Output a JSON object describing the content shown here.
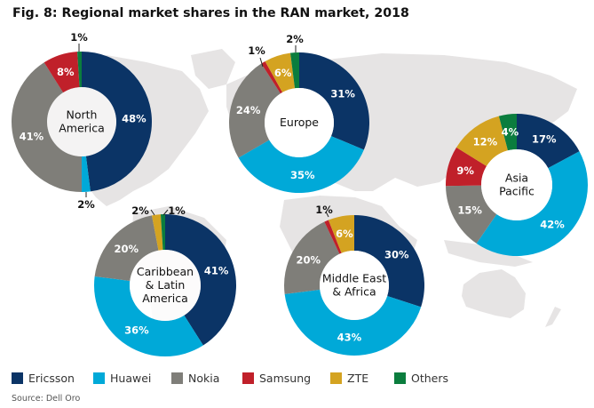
{
  "chart_data": {
    "type": "pie",
    "subtype": "donut",
    "title": "Fig. 8: Regional market shares in the RAN market, 2018",
    "source": "Source: Dell Oro",
    "unit": "%",
    "legend_position": "bottom",
    "series_names": [
      "Ericsson",
      "Huawei",
      "Nokia",
      "Samsung",
      "ZTE",
      "Others"
    ],
    "colors": {
      "Ericsson": "#0b3466",
      "Huawei": "#00a9d8",
      "Nokia": "#7f7e79",
      "Samsung": "#c0202a",
      "ZTE": "#d4a321",
      "Others": "#0b7d3e"
    },
    "regions": [
      {
        "name": "North America",
        "label_lines": [
          "North",
          "America"
        ],
        "values": {
          "Ericsson": 48,
          "Huawei": 2,
          "Nokia": 41,
          "Samsung": 8,
          "ZTE": 0,
          "Others": 1
        },
        "labels": {
          "Ericsson": "48%",
          "Huawei": "2%",
          "Nokia": "41%",
          "Samsung": "8%",
          "Others": "1%"
        }
      },
      {
        "name": "Europe",
        "label_lines": [
          "Europe"
        ],
        "values": {
          "Ericsson": 31,
          "Huawei": 35,
          "Nokia": 24,
          "Samsung": 1,
          "ZTE": 6,
          "Others": 2
        },
        "labels": {
          "Ericsson": "31%",
          "Huawei": "35%",
          "Nokia": "24%",
          "Samsung": "1%",
          "ZTE": "6%",
          "Others": "2%"
        }
      },
      {
        "name": "Asia Pacific",
        "label_lines": [
          "Asia",
          "Pacific"
        ],
        "values": {
          "Ericsson": 17,
          "Huawei": 42,
          "Nokia": 15,
          "Samsung": 9,
          "ZTE": 12,
          "Others": 4
        },
        "labels": {
          "Ericsson": "17%",
          "Huawei": "42%",
          "Nokia": "15%",
          "Samsung": "9%",
          "ZTE": "12%",
          "Others": "4%"
        }
      },
      {
        "name": "Caribbean & Latin America",
        "label_lines": [
          "Caribbean",
          "& Latin",
          "America"
        ],
        "values": {
          "Ericsson": 41,
          "Huawei": 36,
          "Nokia": 20,
          "Samsung": 0,
          "ZTE": 2,
          "Others": 1
        },
        "labels": {
          "Ericsson": "41%",
          "Huawei": "36%",
          "Nokia": "20%",
          "ZTE": "2%",
          "Others": "1%"
        }
      },
      {
        "name": "Middle East & Africa",
        "label_lines": [
          "Middle East",
          "& Africa"
        ],
        "values": {
          "Ericsson": 30,
          "Huawei": 43,
          "Nokia": 20,
          "Samsung": 1,
          "ZTE": 6,
          "Others": 0
        },
        "labels": {
          "Ericsson": "30%",
          "Huawei": "43%",
          "Nokia": "20%",
          "Samsung": "1%",
          "ZTE": "6%"
        }
      }
    ]
  },
  "legend": [
    {
      "label": "Ericsson",
      "color": "#0b3466"
    },
    {
      "label": "Huawei",
      "color": "#00a9d8"
    },
    {
      "label": "Nokia",
      "color": "#7f7e79"
    },
    {
      "label": "Samsung",
      "color": "#c0202a"
    },
    {
      "label": "ZTE",
      "color": "#d4a321"
    },
    {
      "label": "Others",
      "color": "#0b7d3e"
    }
  ]
}
